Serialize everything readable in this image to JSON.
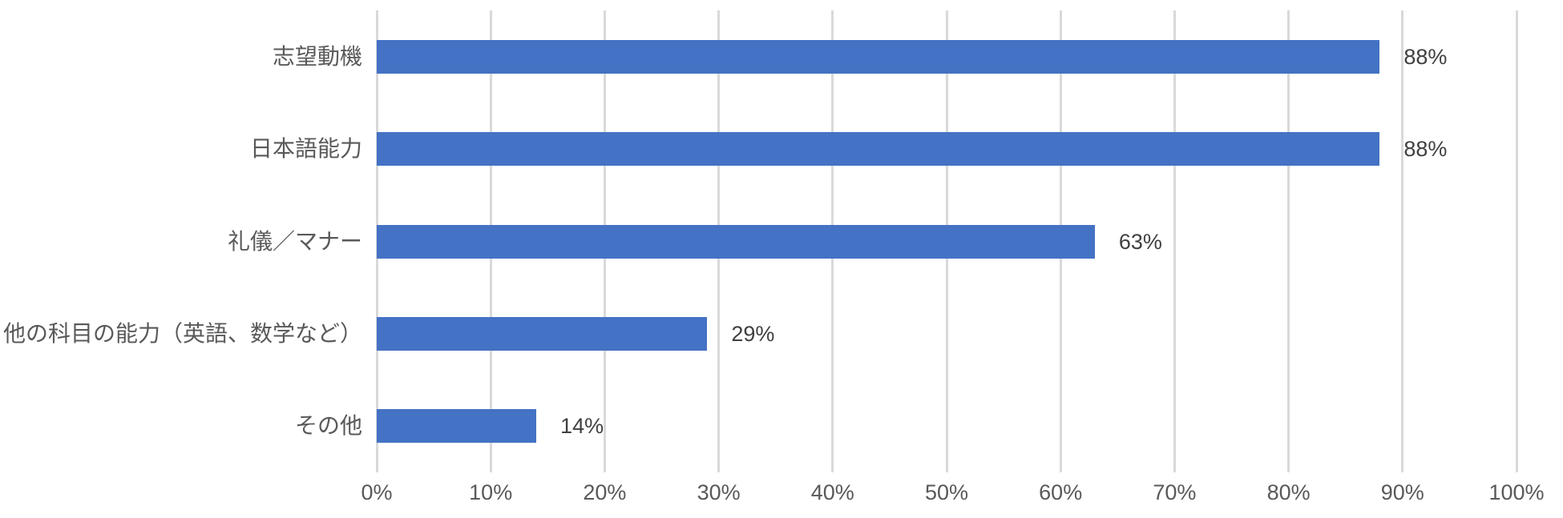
{
  "chart_data": {
    "type": "bar",
    "orientation": "horizontal",
    "categories": [
      "志望動機",
      "日本語能力",
      "礼儀／マナー",
      "他の科目の能力（英語、数学など）",
      "その他"
    ],
    "values": [
      88,
      88,
      63,
      29,
      14
    ],
    "data_labels": [
      "88%",
      "88%",
      "63%",
      "29%",
      "14%"
    ],
    "x_tick_labels": [
      "0%",
      "10%",
      "20%",
      "30%",
      "40%",
      "50%",
      "60%",
      "70%",
      "80%",
      "90%",
      "100%"
    ],
    "x_tick_values": [
      0,
      10,
      20,
      30,
      40,
      50,
      60,
      70,
      80,
      90,
      100
    ],
    "xlim": [
      0,
      100
    ],
    "title": "",
    "xlabel": "",
    "ylabel": "",
    "legend": "none",
    "grid": "vertical",
    "colors": {
      "bar": "#4472C4",
      "gridline": "#D9D9D9",
      "category_label": "#595959",
      "tick_label": "#595959",
      "data_label": "#404040",
      "background": "#FFFFFF"
    }
  }
}
